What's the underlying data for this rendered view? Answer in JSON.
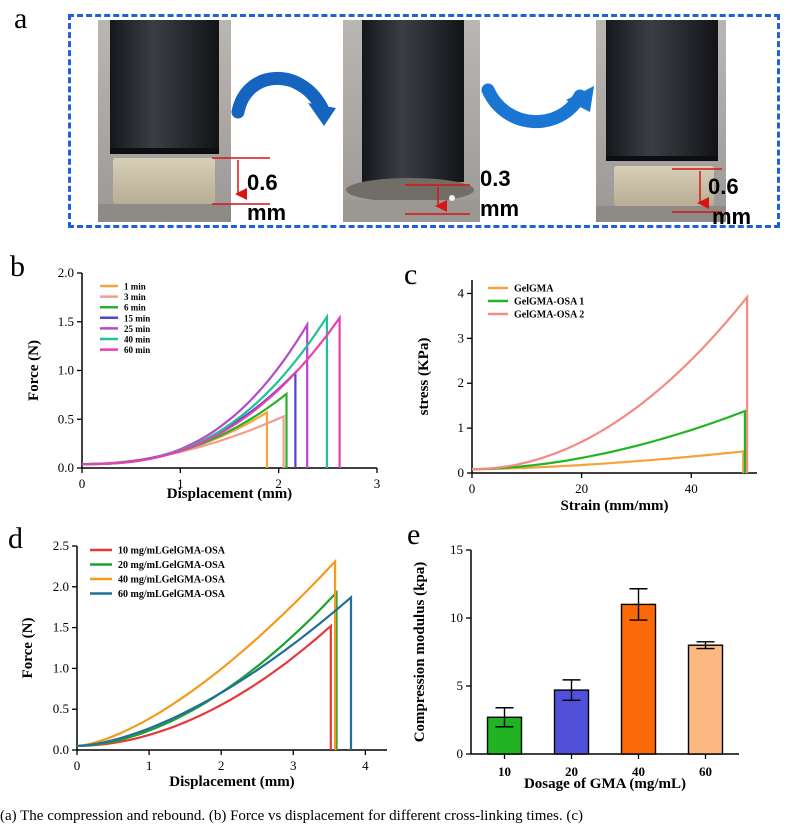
{
  "panel_letters": {
    "a": "a",
    "b": "b",
    "c": "c",
    "d": "d",
    "e": "e"
  },
  "panel_a": {
    "photos": [
      {
        "value": "0.6",
        "unit": "mm"
      },
      {
        "value": "0.3",
        "unit": "mm"
      },
      {
        "value": "0.6",
        "unit": "mm"
      }
    ],
    "arrow_color": "#1565c0",
    "border_color": "#2060d8"
  },
  "caption": "(a) The compression and rebound. (b) Force vs displacement for different cross-linking times. (c)",
  "chart_data": [
    {
      "id": "b",
      "type": "line",
      "title": "",
      "xlabel": "Displacement (mm)",
      "ylabel": "Force (N)",
      "xlim": [
        0,
        3
      ],
      "ylim": [
        0,
        2.0
      ],
      "xticks": [
        0,
        1,
        2,
        3
      ],
      "xtick_labels": [
        "0",
        "1",
        "2",
        "3"
      ],
      "yticks": [
        0,
        0.5,
        1.0,
        1.5,
        2.0
      ],
      "ytick_labels": [
        "0.0",
        "0.5",
        "1.0",
        "1.5",
        "2.0"
      ],
      "grid": false,
      "legend_position": "top-left",
      "series": [
        {
          "name": "1 min",
          "color": "#f7a440",
          "max_x": 1.88,
          "max_y": 0.57,
          "exp": 2.2
        },
        {
          "name": "3 min",
          "color": "#f39c90",
          "max_x": 2.05,
          "max_y": 0.53,
          "exp": 1.9
        },
        {
          "name": "6 min",
          "color": "#2ab02a",
          "max_x": 2.08,
          "max_y": 0.76,
          "exp": 2.3
        },
        {
          "name": "15 min",
          "color": "#4f46c8",
          "max_x": 2.17,
          "max_y": 0.98,
          "exp": 2.4
        },
        {
          "name": "25 min",
          "color": "#b449c9",
          "max_x": 2.29,
          "max_y": 1.47,
          "exp": 2.7
        },
        {
          "name": "40 min",
          "color": "#1ec297",
          "max_x": 2.49,
          "max_y": 1.55,
          "exp": 2.6
        },
        {
          "name": "60 min",
          "color": "#e83fb6",
          "max_x": 2.62,
          "max_y": 1.54,
          "exp": 2.5
        }
      ]
    },
    {
      "id": "c",
      "type": "line",
      "title": "",
      "xlabel": "Strain (mm/mm)",
      "ylabel": "stress (KPa)",
      "xlim": [
        0,
        52
      ],
      "ylim": [
        0,
        4.3
      ],
      "xticks": [
        0,
        20,
        40
      ],
      "xtick_labels": [
        "0",
        "20",
        "40"
      ],
      "yticks": [
        0,
        1,
        2,
        3,
        4
      ],
      "ytick_labels": [
        "0",
        "1",
        "2",
        "3",
        "4"
      ],
      "grid": false,
      "legend_position": "top-left",
      "series": [
        {
          "name": "GelGMA",
          "color": "#f5a23c",
          "max_x": 49.5,
          "max_y": 0.48,
          "exp": 1.6
        },
        {
          "name": "GelGMA-OSA 1",
          "color": "#22b522",
          "max_x": 49.8,
          "max_y": 1.38,
          "exp": 1.8
        },
        {
          "name": "GelGMA-OSA 2",
          "color": "#f48a82",
          "max_x": 50.2,
          "max_y": 3.92,
          "exp": 2.0
        }
      ]
    },
    {
      "id": "d",
      "type": "line",
      "title": "",
      "xlabel": "Displacement (mm)",
      "ylabel": "Force (N)",
      "xlim": [
        0,
        4.3
      ],
      "ylim": [
        0,
        2.5
      ],
      "xticks": [
        0,
        1,
        2,
        3,
        4
      ],
      "xtick_labels": [
        "0",
        "1",
        "2",
        "3",
        "4"
      ],
      "yticks": [
        0,
        0.5,
        1.0,
        1.5,
        2.0,
        2.5
      ],
      "ytick_labels": [
        "0.0",
        "0.5",
        "1.0",
        "1.5",
        "2.0",
        "2.5"
      ],
      "grid": false,
      "legend_position": "top-left",
      "series": [
        {
          "name": "10 mg/mLGelGMA-OSA",
          "color": "#e8393a",
          "max_x": 3.52,
          "max_y": 1.52,
          "exp": 1.9
        },
        {
          "name": "20 mg/mLGelGMA-OSA",
          "color": "#1ba12e",
          "max_x": 3.6,
          "max_y": 1.93,
          "exp": 1.8
        },
        {
          "name": "40 mg/mLGelGMA-OSA",
          "color": "#f59a1b",
          "max_x": 3.58,
          "max_y": 2.31,
          "exp": 1.5
        },
        {
          "name": "60 mg/mLGelGMA-OSA",
          "color": "#236f9a",
          "max_x": 3.8,
          "max_y": 1.87,
          "exp": 1.6
        }
      ]
    },
    {
      "id": "e",
      "type": "bar",
      "title": "",
      "xlabel": "Dosage of GMA (mg/mL)",
      "ylabel": "Compression modulus (kpa)",
      "categories": [
        "10",
        "20",
        "40",
        "60"
      ],
      "values": [
        2.7,
        4.7,
        11.0,
        8.0
      ],
      "errors": [
        0.7,
        0.75,
        1.15,
        0.25
      ],
      "colors": [
        "#21b321",
        "#5050db",
        "#fb6a06",
        "#fbb880"
      ],
      "ylim": [
        0,
        15
      ],
      "yticks": [
        0,
        5,
        10,
        15
      ],
      "ytick_labels": [
        "0",
        "5",
        "10",
        "15"
      ],
      "grid": false
    }
  ]
}
